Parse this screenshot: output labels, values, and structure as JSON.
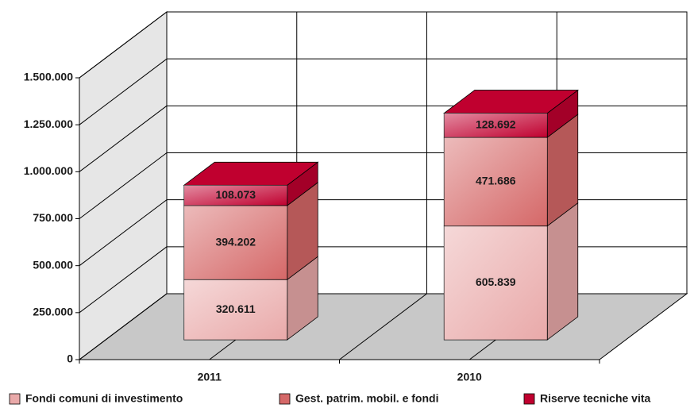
{
  "chart_data": {
    "type": "bar3d_stacked",
    "categories": [
      "2011",
      "2010"
    ],
    "series": [
      {
        "name": "Fondi comuni di investimento",
        "color": "#e9a9a9",
        "values": [
          320611,
          605839
        ],
        "value_labels": [
          "320.611",
          "605.839"
        ]
      },
      {
        "name": "Gest. patrim. mobil. e fondi",
        "color": "#d56868",
        "values": [
          394202,
          471686
        ],
        "value_labels": [
          "394.202",
          "471.686"
        ]
      },
      {
        "name": "Riserve tecniche vita",
        "color": "#c0002f",
        "values": [
          108073,
          128692
        ],
        "value_labels": [
          "108.073",
          "128.692"
        ]
      }
    ],
    "ylim": [
      0,
      1500000
    ],
    "yticks": [
      0,
      {
        "value": 250000,
        "label": "250.000"
      },
      {
        "value": 500000,
        "label": "500.000"
      },
      {
        "value": 750000,
        "label": "750.000"
      },
      {
        "value": 1000000,
        "label": "1.000.000"
      },
      {
        "value": 1250000,
        "label": "1.250.000"
      },
      {
        "value": 1500000,
        "label": "1.500.000"
      }
    ],
    "grid": true
  }
}
